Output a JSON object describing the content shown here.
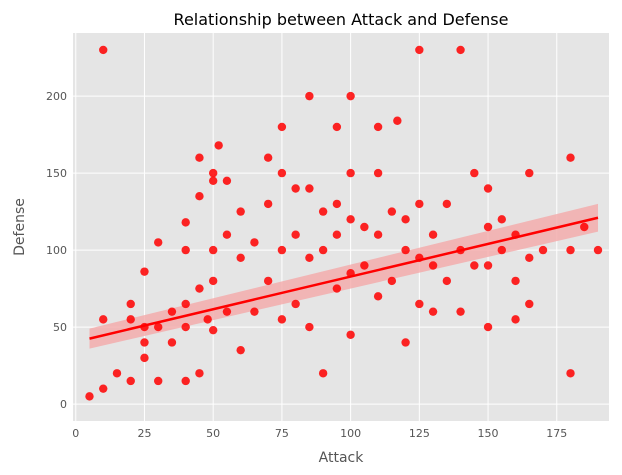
{
  "chart_data": {
    "type": "scatter",
    "title": "Relationship between Attack and Defense",
    "xlabel": "Attack",
    "ylabel": "Defense",
    "xlim": [
      -1,
      194
    ],
    "ylim": [
      -11,
      241
    ],
    "xticks": [
      0,
      25,
      50,
      75,
      100,
      125,
      150,
      175
    ],
    "yticks": [
      0,
      50,
      100,
      150,
      200
    ],
    "grid": true,
    "style": "ggplot",
    "colors": {
      "points": "#ff0000",
      "line": "#ff0000",
      "band": "#f4a9a9",
      "panel": "#e5e5e5",
      "grid": "#ffffff"
    },
    "regression": {
      "x": [
        5,
        190
      ],
      "y": [
        42.5,
        121
      ],
      "ci_low": [
        36,
        112
      ],
      "ci_high": [
        49,
        130
      ]
    },
    "points": [
      [
        5,
        5
      ],
      [
        10,
        230
      ],
      [
        10,
        10
      ],
      [
        10,
        55
      ],
      [
        15,
        20
      ],
      [
        20,
        15
      ],
      [
        20,
        65
      ],
      [
        20,
        55
      ],
      [
        25,
        50
      ],
      [
        25,
        86
      ],
      [
        25,
        40
      ],
      [
        25,
        30
      ],
      [
        30,
        105
      ],
      [
        30,
        50
      ],
      [
        30,
        15
      ],
      [
        35,
        40
      ],
      [
        35,
        60
      ],
      [
        40,
        118
      ],
      [
        40,
        65
      ],
      [
        40,
        100
      ],
      [
        40,
        15
      ],
      [
        40,
        50
      ],
      [
        45,
        160
      ],
      [
        45,
        135
      ],
      [
        45,
        75
      ],
      [
        45,
        20
      ],
      [
        48,
        55
      ],
      [
        50,
        150
      ],
      [
        50,
        145
      ],
      [
        50,
        100
      ],
      [
        50,
        80
      ],
      [
        50,
        48
      ],
      [
        52,
        168
      ],
      [
        55,
        145
      ],
      [
        55,
        110
      ],
      [
        55,
        60
      ],
      [
        60,
        125
      ],
      [
        60,
        95
      ],
      [
        60,
        35
      ],
      [
        65,
        105
      ],
      [
        65,
        60
      ],
      [
        70,
        160
      ],
      [
        70,
        130
      ],
      [
        70,
        80
      ],
      [
        75,
        180
      ],
      [
        75,
        150
      ],
      [
        75,
        100
      ],
      [
        75,
        55
      ],
      [
        80,
        140
      ],
      [
        80,
        110
      ],
      [
        80,
        65
      ],
      [
        85,
        200
      ],
      [
        85,
        140
      ],
      [
        85,
        95
      ],
      [
        85,
        50
      ],
      [
        90,
        125
      ],
      [
        90,
        100
      ],
      [
        90,
        20
      ],
      [
        95,
        180
      ],
      [
        95,
        130
      ],
      [
        95,
        110
      ],
      [
        95,
        75
      ],
      [
        100,
        200
      ],
      [
        100,
        150
      ],
      [
        100,
        120
      ],
      [
        100,
        85
      ],
      [
        100,
        45
      ],
      [
        105,
        115
      ],
      [
        105,
        90
      ],
      [
        110,
        180
      ],
      [
        110,
        150
      ],
      [
        110,
        110
      ],
      [
        110,
        70
      ],
      [
        115,
        125
      ],
      [
        115,
        80
      ],
      [
        117,
        184
      ],
      [
        120,
        120
      ],
      [
        120,
        100
      ],
      [
        120,
        40
      ],
      [
        125,
        230
      ],
      [
        125,
        130
      ],
      [
        125,
        95
      ],
      [
        125,
        65
      ],
      [
        130,
        110
      ],
      [
        130,
        90
      ],
      [
        130,
        60
      ],
      [
        135,
        130
      ],
      [
        135,
        80
      ],
      [
        140,
        230
      ],
      [
        140,
        100
      ],
      [
        140,
        60
      ],
      [
        145,
        150
      ],
      [
        145,
        90
      ],
      [
        150,
        140
      ],
      [
        150,
        115
      ],
      [
        150,
        90
      ],
      [
        150,
        50
      ],
      [
        155,
        120
      ],
      [
        155,
        100
      ],
      [
        160,
        110
      ],
      [
        160,
        80
      ],
      [
        160,
        55
      ],
      [
        165,
        150
      ],
      [
        165,
        95
      ],
      [
        165,
        65
      ],
      [
        170,
        100
      ],
      [
        180,
        160
      ],
      [
        180,
        100
      ],
      [
        180,
        20
      ],
      [
        185,
        115
      ],
      [
        190,
        100
      ]
    ]
  }
}
